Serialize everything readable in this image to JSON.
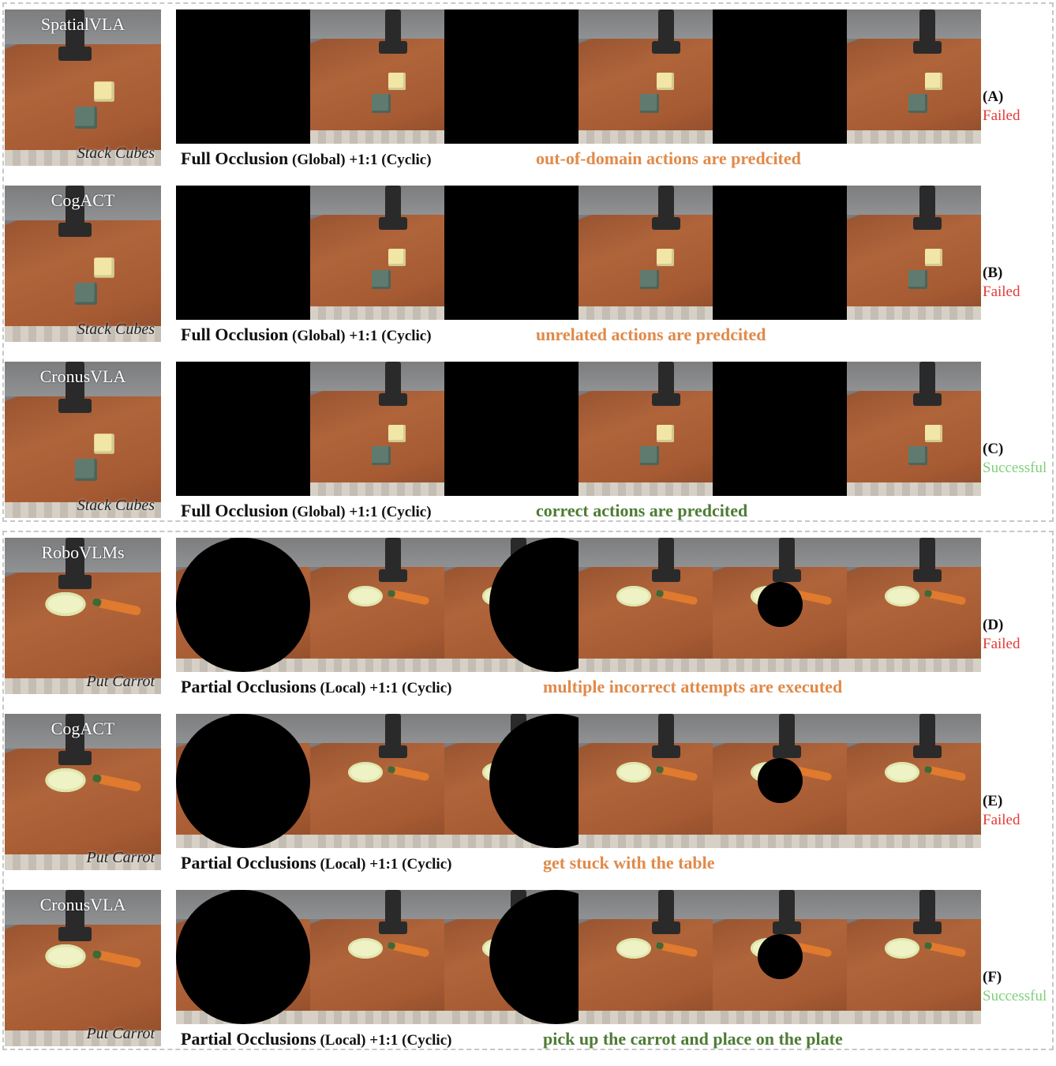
{
  "groups": [
    {
      "label": "full-occlusion-group"
    },
    {
      "label": "partial-occlusion-group"
    }
  ],
  "rows": [
    {
      "letter": "(A)",
      "status": "Failed",
      "status_type": "failed",
      "model": "SpatialVLA",
      "task": "Stack Cubes",
      "caption_main": "Full Occlusion",
      "caption_rest": " (Global) +1:1 (Cyclic)",
      "note": "out-of-domain actions are predcited",
      "note_type": "bad",
      "scene": "cubes",
      "occlusion": "full"
    },
    {
      "letter": "(B)",
      "status": "Failed",
      "status_type": "failed",
      "model": "CogACT",
      "task": "Stack Cubes",
      "caption_main": "Full Occlusion",
      "caption_rest": " (Global) +1:1 (Cyclic)",
      "note": "unrelated actions are predcited",
      "note_type": "bad",
      "scene": "cubes",
      "occlusion": "full"
    },
    {
      "letter": "(C)",
      "status": "Successful",
      "status_type": "success",
      "model": "CronusVLA",
      "task": "Stack Cubes",
      "caption_main": "Full Occlusion",
      "caption_rest": " (Global) +1:1 (Cyclic)",
      "note": "correct actions are predcited",
      "note_type": "good",
      "scene": "cubes",
      "occlusion": "full"
    },
    {
      "letter": "(D)",
      "status": "Failed",
      "status_type": "failed",
      "model": "RoboVLMs",
      "task": "Put Carrot",
      "caption_main": "Partial Occlusions",
      "caption_rest": " (Local) +1:1 (Cyclic)",
      "note": "multiple incorrect attempts are executed",
      "note_type": "bad",
      "scene": "carrot",
      "occlusion": "partial"
    },
    {
      "letter": "(E)",
      "status": "Failed",
      "status_type": "failed",
      "model": "CogACT",
      "task": "Put Carrot",
      "caption_main": "Partial Occlusions",
      "caption_rest": " (Local) +1:1 (Cyclic)",
      "note": "get stuck with the table",
      "note_type": "bad",
      "scene": "carrot",
      "occlusion": "partial"
    },
    {
      "letter": "(F)",
      "status": "Successful",
      "status_type": "success",
      "model": "CronusVLA",
      "task": "Put Carrot",
      "caption_main": "Partial Occlusions",
      "caption_rest": " (Local) +1:1 (Cyclic)",
      "note": "pick up the carrot and place on the plate",
      "note_type": "good",
      "scene": "carrot",
      "occlusion": "partial"
    }
  ]
}
